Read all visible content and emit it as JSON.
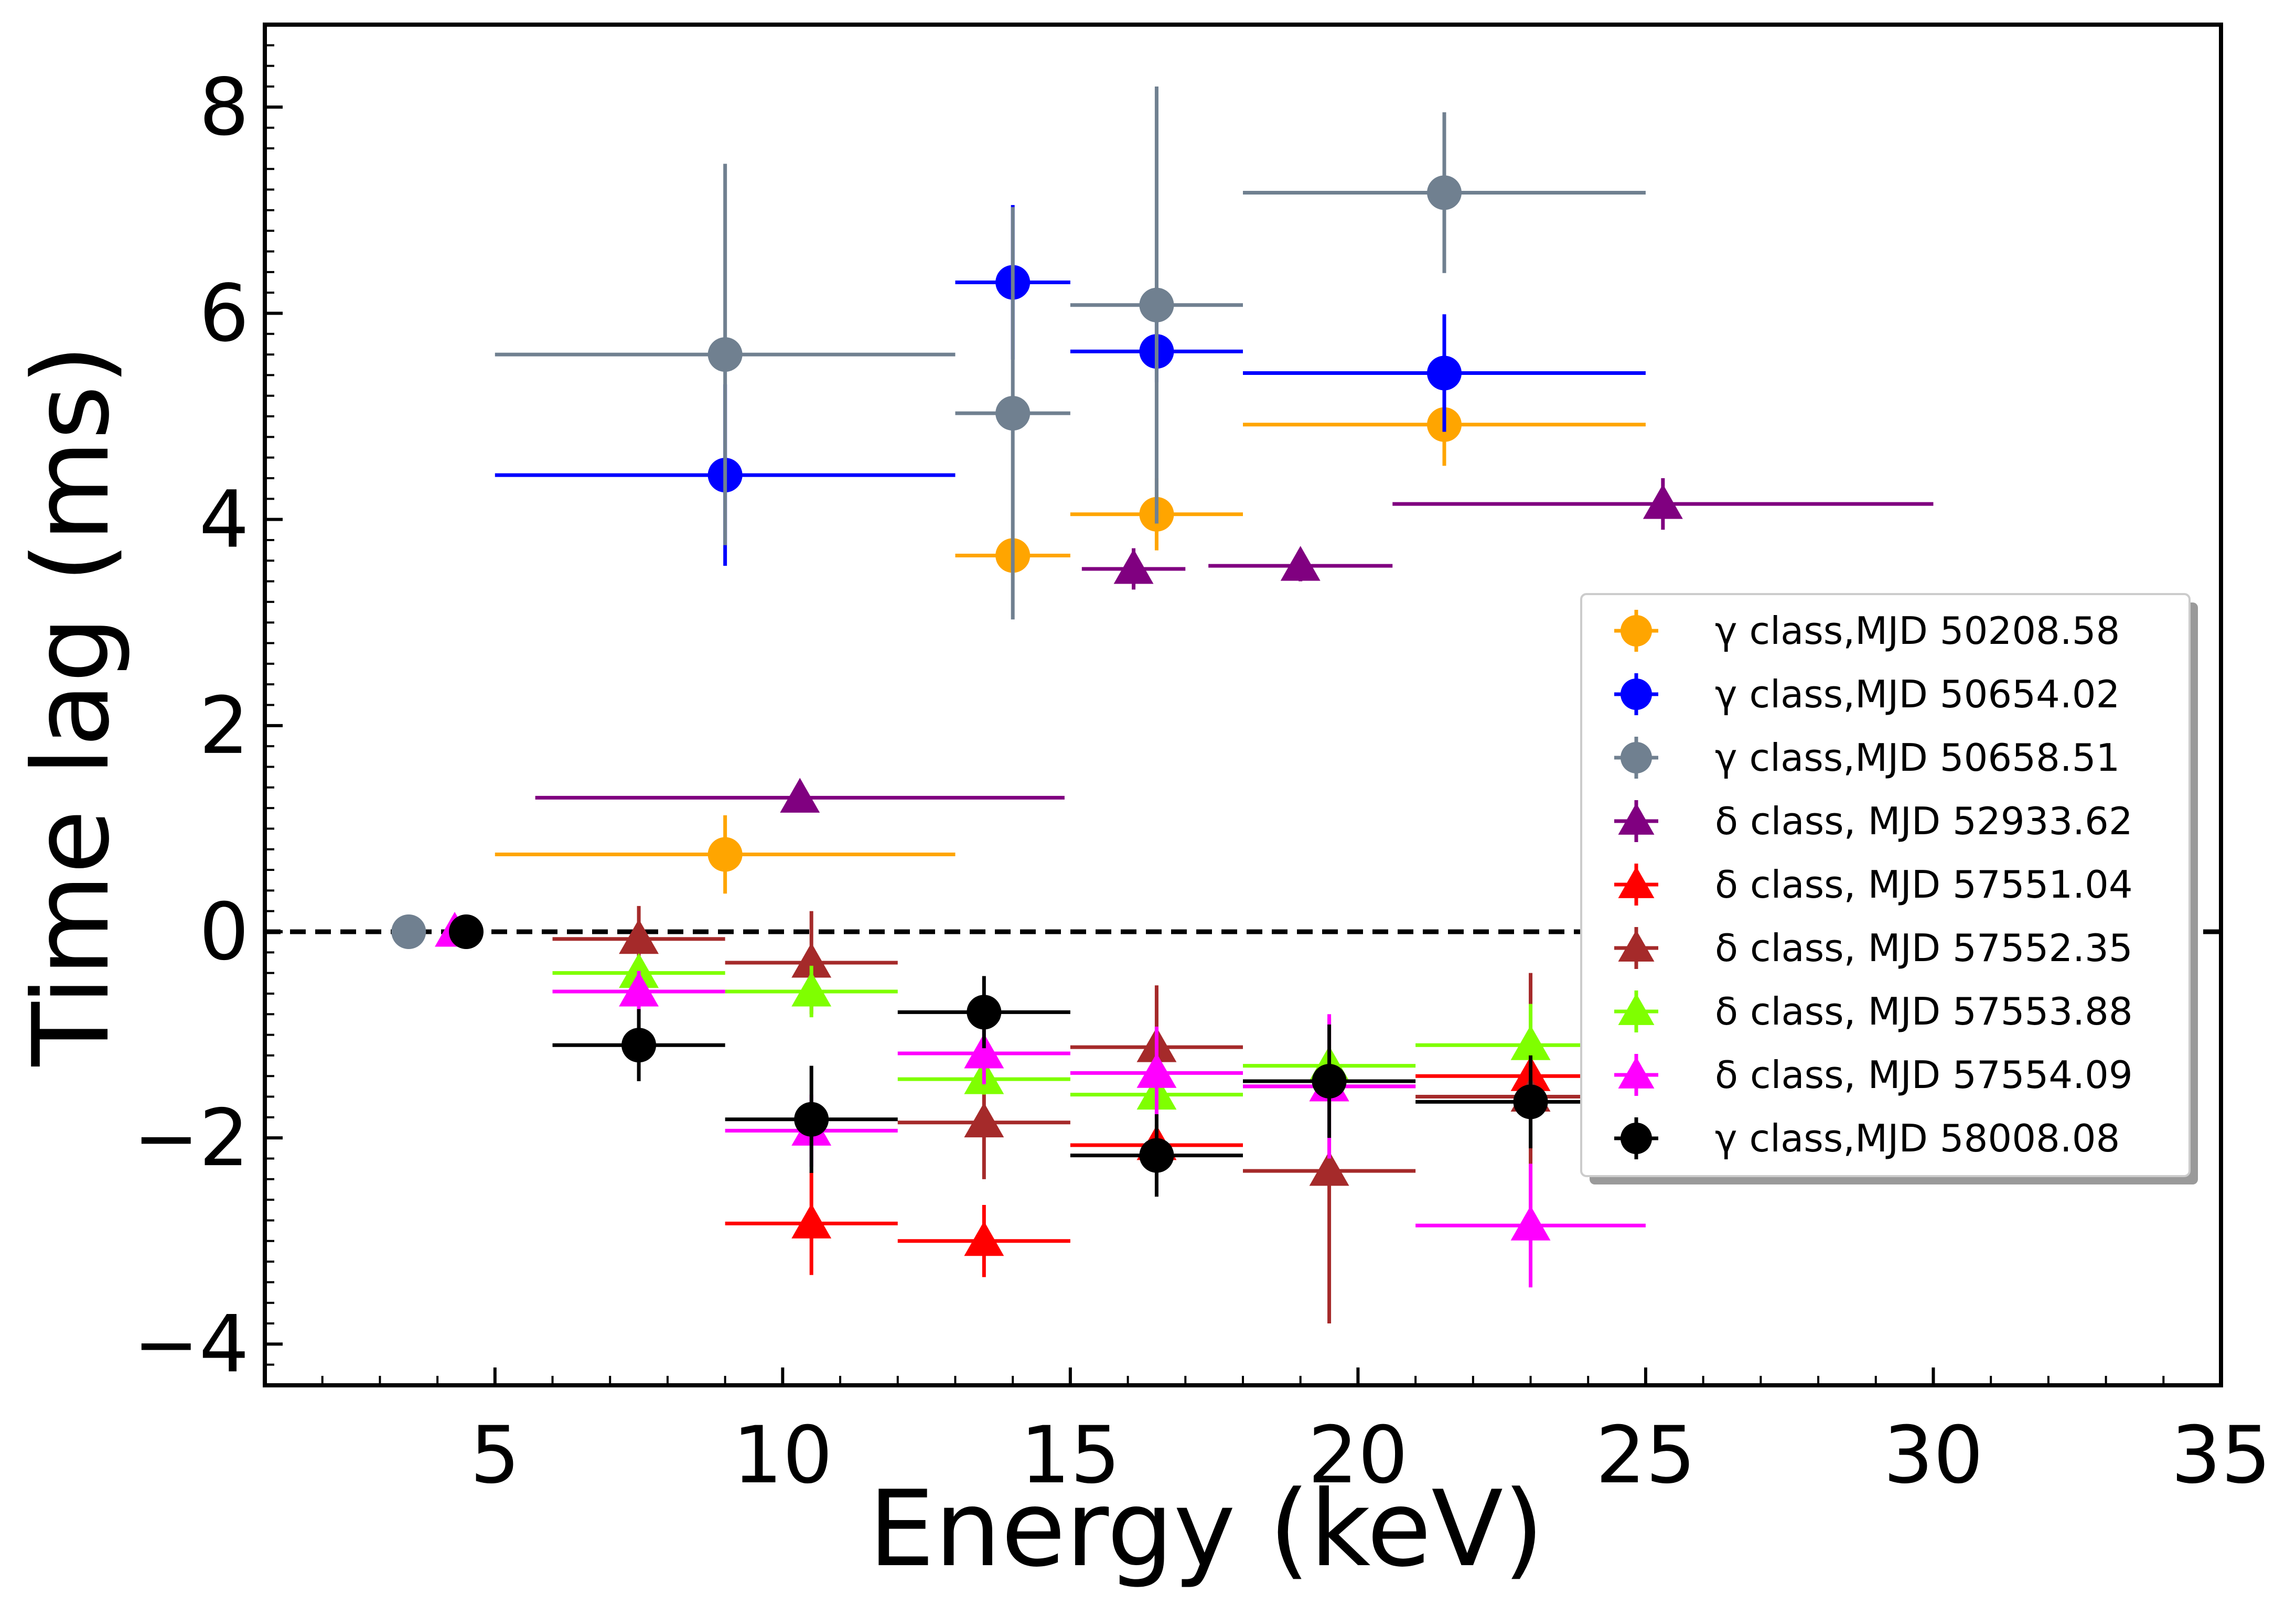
{
  "chart_data": {
    "type": "scatter",
    "title": "",
    "xlabel": "Energy (keV)",
    "ylabel": "Time lag (ms)",
    "xlim": [
      1,
      35
    ],
    "ylim": [
      -4.4,
      8.8
    ],
    "xticks": [
      5,
      10,
      15,
      20,
      25,
      30,
      35
    ],
    "xtick_labels": [
      "5",
      "10",
      "15",
      "20",
      "25",
      "30",
      "35"
    ],
    "yticks": [
      -4,
      -2,
      0,
      2,
      4,
      6,
      8
    ],
    "ytick_labels": [
      "−4",
      "−2",
      "0",
      "2",
      "4",
      "6",
      "8"
    ],
    "reference_line": {
      "y": 0,
      "style": "dashed",
      "color": "#000000"
    },
    "legend_position": "center-right",
    "series": [
      {
        "name": "γ class,MJD 50208.58",
        "marker": "circle",
        "color": "#FFA500",
        "points": [
          {
            "x": 9,
            "xerr": 4,
            "y": 0.75,
            "yerr": 0.38
          },
          {
            "x": 14,
            "xerr": 1,
            "y": 3.65,
            "yerr": 0.15
          },
          {
            "x": 16.5,
            "xerr": 1.5,
            "y": 4.05,
            "yerr": 0.35
          },
          {
            "x": 21.5,
            "xerr": 3.5,
            "y": 4.92,
            "yerr": 0.4
          }
        ]
      },
      {
        "name": "γ class,MJD 50654.02",
        "marker": "circle",
        "color": "#0000FF",
        "points": [
          {
            "x": 9,
            "xerr": 4,
            "y": 4.43,
            "yerr": 0.88
          },
          {
            "x": 14,
            "xerr": 1,
            "y": 6.3,
            "yerr": 0.75
          },
          {
            "x": 16.5,
            "xerr": 1.5,
            "y": 5.63,
            "yerr": 0.3
          },
          {
            "x": 21.5,
            "xerr": 3.5,
            "y": 5.42,
            "yerr": 0.57
          }
        ]
      },
      {
        "name": "γ class,MJD 50658.51",
        "marker": "circle",
        "color": "#708090",
        "points": [
          {
            "x": 3.5,
            "xerr": 0,
            "y": 0.0,
            "yerr": 0
          },
          {
            "x": 9,
            "xerr": 4,
            "y": 5.6,
            "yerr": 1.85
          },
          {
            "x": 14,
            "xerr": 1,
            "y": 5.03,
            "yerr": 2.0
          },
          {
            "x": 16.5,
            "xerr": 1.5,
            "y": 6.08,
            "yerr": 2.12
          },
          {
            "x": 21.5,
            "xerr": 3.5,
            "y": 7.17,
            "yerr": 0.78
          }
        ]
      },
      {
        "name": "δ class, MJD 52933.62",
        "marker": "triangle",
        "color": "#800080",
        "points": [
          {
            "x": 10.3,
            "xerr": 4.6,
            "y": 1.3,
            "yerr": 0
          },
          {
            "x": 16.1,
            "xerr": 0.9,
            "y": 3.52,
            "yerr": 0.2
          },
          {
            "x": 19,
            "xerr": 1.6,
            "y": 3.55,
            "yerr": 0.15
          },
          {
            "x": 25.3,
            "xerr": 4.7,
            "y": 4.15,
            "yerr": 0.25
          }
        ]
      },
      {
        "name": "δ class, MJD 57551.04",
        "marker": "triangle",
        "color": "#FF0000",
        "points": [
          {
            "x": 10.5,
            "xerr": 1.5,
            "y": -2.83,
            "yerr": 0.5
          },
          {
            "x": 13.5,
            "xerr": 1.5,
            "y": -3.0,
            "yerr": 0.35
          },
          {
            "x": 16.5,
            "xerr": 1.5,
            "y": -2.07,
            "yerr": 0.2
          },
          {
            "x": 19.5,
            "xerr": 1.5,
            "y": -1.5,
            "yerr": 0.2
          },
          {
            "x": 23,
            "xerr": 2,
            "y": -1.4,
            "yerr": 0.3
          }
        ]
      },
      {
        "name": "δ class, MJD 57552.35",
        "marker": "triangle",
        "color": "#A52A2A",
        "points": [
          {
            "x": 7.5,
            "xerr": 1.5,
            "y": -0.07,
            "yerr": 0.32
          },
          {
            "x": 10.5,
            "xerr": 1.5,
            "y": -0.3,
            "yerr": 0.5
          },
          {
            "x": 13.5,
            "xerr": 1.5,
            "y": -1.85,
            "yerr": 0.55
          },
          {
            "x": 16.5,
            "xerr": 1.5,
            "y": -1.12,
            "yerr": 0.6
          },
          {
            "x": 19.5,
            "xerr": 1.5,
            "y": -2.32,
            "yerr": 1.48
          },
          {
            "x": 23,
            "xerr": 2,
            "y": -1.6,
            "yerr": 1.2
          }
        ]
      },
      {
        "name": "δ class, MJD 57553.88",
        "marker": "triangle",
        "color": "#7FFF00",
        "points": [
          {
            "x": 7.5,
            "xerr": 1.5,
            "y": -0.4,
            "yerr": 0.15
          },
          {
            "x": 10.5,
            "xerr": 1.5,
            "y": -0.58,
            "yerr": 0.25
          },
          {
            "x": 13.5,
            "xerr": 1.5,
            "y": -1.43,
            "yerr": 0.15
          },
          {
            "x": 16.5,
            "xerr": 1.5,
            "y": -1.58,
            "yerr": 0.25
          },
          {
            "x": 19.5,
            "xerr": 1.5,
            "y": -1.3,
            "yerr": 0.2
          },
          {
            "x": 23,
            "xerr": 2,
            "y": -1.1,
            "yerr": 0.4
          }
        ]
      },
      {
        "name": "δ class, MJD 57554.09",
        "marker": "triangle",
        "color": "#FF00FF",
        "points": [
          {
            "x": 4.3,
            "xerr": 0,
            "y": 0.0,
            "yerr": 0
          },
          {
            "x": 7.5,
            "xerr": 1.5,
            "y": -0.58,
            "yerr": 0.2
          },
          {
            "x": 10.5,
            "xerr": 1.5,
            "y": -1.93,
            "yerr": 0.35
          },
          {
            "x": 13.5,
            "xerr": 1.5,
            "y": -1.18,
            "yerr": 0.3
          },
          {
            "x": 16.5,
            "xerr": 1.5,
            "y": -1.37,
            "yerr": 0.45
          },
          {
            "x": 19.5,
            "xerr": 1.5,
            "y": -1.5,
            "yerr": 0.7
          },
          {
            "x": 23,
            "xerr": 2,
            "y": -2.85,
            "yerr": 0.6
          }
        ]
      },
      {
        "name": "γ class,MJD 58008.08",
        "marker": "circle",
        "color": "#000000",
        "points": [
          {
            "x": 4.5,
            "xerr": 0,
            "y": 0.0,
            "yerr": 0
          },
          {
            "x": 7.5,
            "xerr": 1.5,
            "y": -1.1,
            "yerr": 0.35
          },
          {
            "x": 10.5,
            "xerr": 1.5,
            "y": -1.82,
            "yerr": 0.52
          },
          {
            "x": 13.5,
            "xerr": 1.5,
            "y": -0.78,
            "yerr": 0.35
          },
          {
            "x": 16.5,
            "xerr": 1.5,
            "y": -2.17,
            "yerr": 0.4
          },
          {
            "x": 19.5,
            "xerr": 1.5,
            "y": -1.45,
            "yerr": 0.55
          },
          {
            "x": 23,
            "xerr": 2,
            "y": -1.65,
            "yerr": 0.45
          }
        ]
      }
    ]
  }
}
